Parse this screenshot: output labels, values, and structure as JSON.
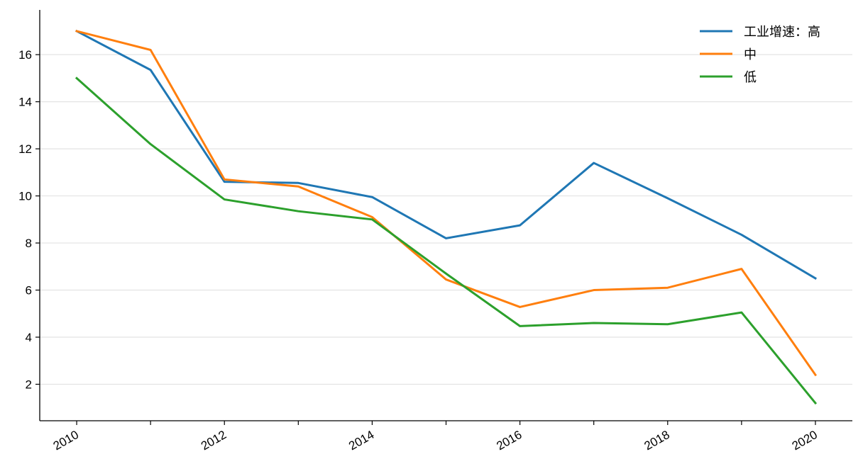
{
  "chart_data": {
    "type": "line",
    "title": "",
    "xlabel": "",
    "ylabel": "",
    "x": [
      2010,
      2011,
      2012,
      2013,
      2014,
      2015,
      2016,
      2017,
      2018,
      2019,
      2020
    ],
    "xlim": [
      2009.5,
      2020.5
    ],
    "ylim": [
      0.45,
      17.9
    ],
    "x_ticks": [
      "2010",
      "2012",
      "2014",
      "2016",
      "2018",
      "2020"
    ],
    "y_ticks": [
      "2",
      "4",
      "6",
      "8",
      "10",
      "12",
      "14",
      "16"
    ],
    "grid": "horizontal",
    "legend_position": "top-right",
    "series": [
      {
        "name": "工业增速：高",
        "color": "#1f77b4",
        "values": [
          17.0,
          15.35,
          10.6,
          10.55,
          9.95,
          8.2,
          8.75,
          11.4,
          9.9,
          8.35,
          6.5
        ]
      },
      {
        "name": "中",
        "color": "#ff7f0e",
        "values": [
          17.0,
          16.2,
          10.7,
          10.4,
          9.1,
          6.45,
          5.28,
          6.0,
          6.1,
          6.9,
          2.4
        ]
      },
      {
        "name": "低",
        "color": "#2ca02c",
        "values": [
          15.0,
          12.2,
          9.85,
          9.35,
          9.0,
          6.7,
          4.47,
          4.6,
          4.55,
          5.05,
          1.2
        ]
      }
    ]
  }
}
